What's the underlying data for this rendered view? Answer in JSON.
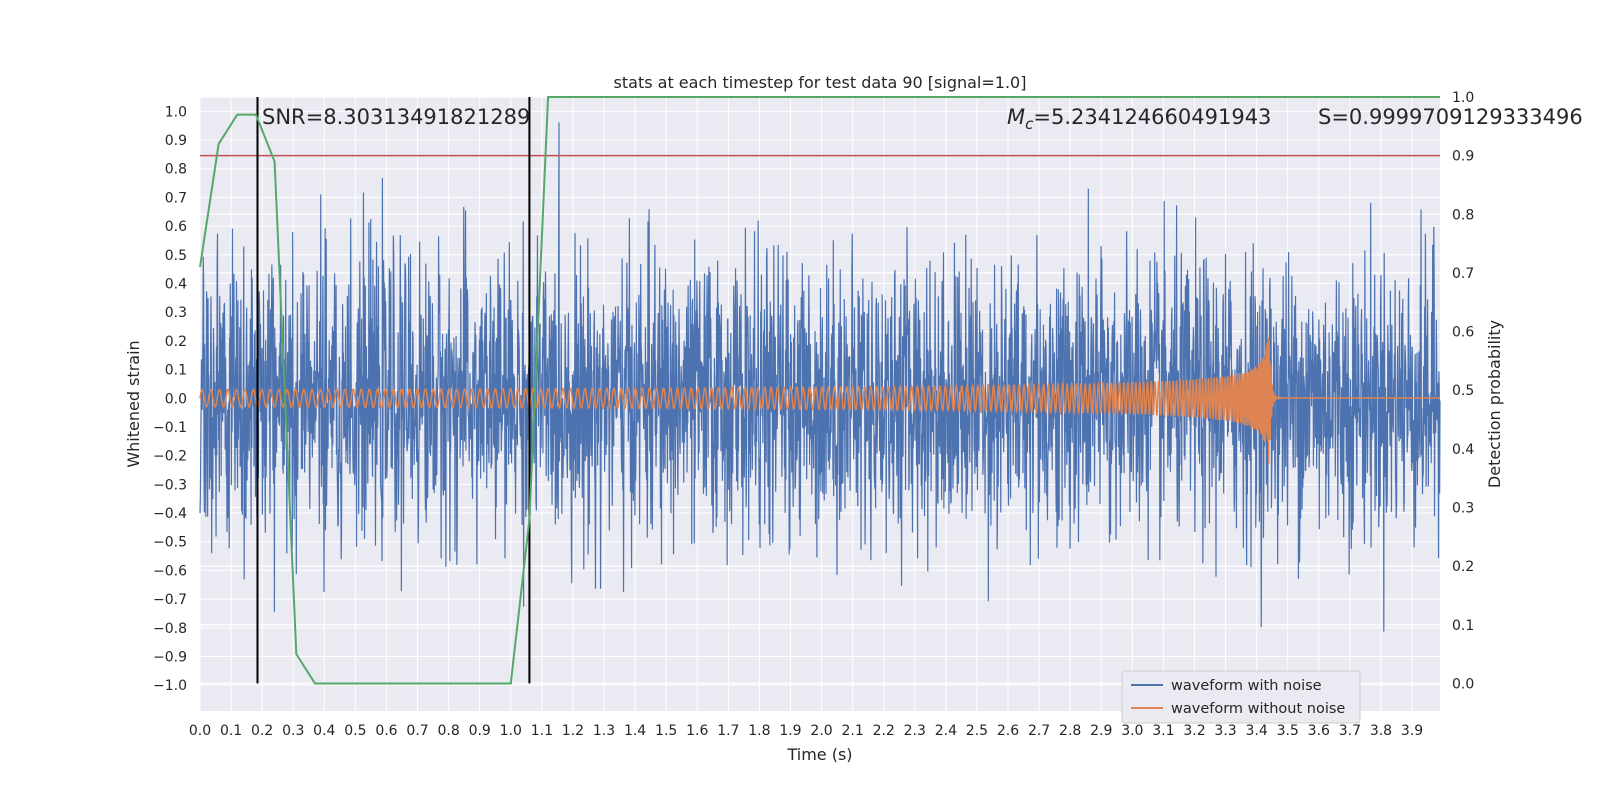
{
  "chart_data": {
    "type": "line",
    "title": "stats at each timestep for test data 90 [signal=1.0]",
    "xlabel": "Time (s)",
    "ylabel_left": "Whitened strain",
    "ylabel_right": "Detection probability",
    "xlim": [
      0.0,
      3.99
    ],
    "ylim_left": [
      -1.09,
      1.05
    ],
    "ylim_right": [
      -0.047,
      1.0
    ],
    "x_ticks": [
      "0.0",
      "0.1",
      "0.2",
      "0.3",
      "0.4",
      "0.5",
      "0.6",
      "0.7",
      "0.8",
      "0.9",
      "1.0",
      "1.1",
      "1.2",
      "1.3",
      "1.4",
      "1.5",
      "1.6",
      "1.7",
      "1.8",
      "1.9",
      "2.0",
      "2.1",
      "2.2",
      "2.3",
      "2.4",
      "2.5",
      "2.6",
      "2.7",
      "2.8",
      "2.9",
      "3.0",
      "3.1",
      "3.2",
      "3.3",
      "3.4",
      "3.5",
      "3.6",
      "3.7",
      "3.8",
      "3.9"
    ],
    "y_ticks_left": [
      "1.0",
      "0.9",
      "0.8",
      "0.7",
      "0.6",
      "0.5",
      "0.4",
      "0.3",
      "0.2",
      "0.1",
      "0.0",
      "-0.1",
      "-0.2",
      "-0.3",
      "-0.4",
      "-0.5",
      "-0.6",
      "-0.7",
      "-0.8",
      "-0.9",
      "-1.0"
    ],
    "y_ticks_right": [
      "1.0",
      "0.9",
      "0.8",
      "0.7",
      "0.6",
      "0.5",
      "0.4",
      "0.3",
      "0.2",
      "0.1",
      "0.0"
    ],
    "grid": true,
    "legend_position": "bottom-right",
    "series": [
      {
        "name": "waveform with noise",
        "axis": "left",
        "color": "#4c72b0",
        "description": "dense noisy whitened strain, amplitude mostly within -0.6..0.6 with spikes to about -1.0 and 0.95"
      },
      {
        "name": "waveform without noise",
        "axis": "left",
        "color": "#dd8452",
        "description": "chirp signal, amplitude about 0.03 growing to about 0.27 at merger near 3.44 s, then ringdown to ~0",
        "merger_time": 3.44,
        "peak_amplitude": 0.27
      },
      {
        "name": "detection probability",
        "axis": "right",
        "color": "#55a868",
        "x": [
          0.0,
          0.06,
          0.12,
          0.18,
          0.24,
          0.31,
          0.37,
          0.44,
          1.0,
          1.06,
          1.12,
          3.99
        ],
        "y": [
          0.71,
          0.92,
          0.97,
          0.97,
          0.89,
          0.05,
          0.0,
          0.0,
          0.0,
          0.28,
          1.0,
          1.0
        ]
      }
    ],
    "threshold_line": {
      "value_right": 0.9,
      "color": "#c44e52"
    },
    "vertical_lines": {
      "x": [
        0.185,
        1.06
      ],
      "color": "#000000"
    },
    "annotations": {
      "snr": "SNR=8.30313491821289",
      "mc_symbol": "M",
      "mc_subscript": "c",
      "mc_value": "=5.234124660491943",
      "s_value": "S=0.9999709129333496"
    },
    "legend": [
      "waveform with noise",
      "waveform without noise"
    ]
  }
}
